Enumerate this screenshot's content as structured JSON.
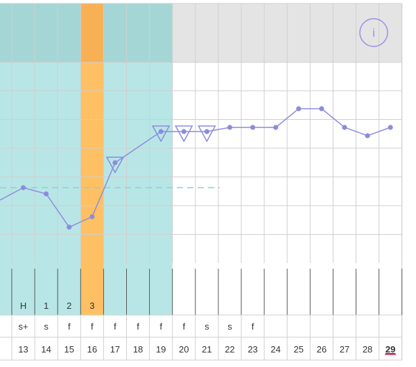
{
  "colors": {
    "teal_band": "#b8e6e6",
    "teal_header": "#a5d6d6",
    "orange_day": "#ffc063",
    "orange_header": "#f7b054",
    "gray_header": "#e4e4e4",
    "grid": "#cfcfcf",
    "series": "#8c8cdc",
    "coverline": "#7fd6d6",
    "today": "#e0406e",
    "info": "#9a8fe6"
  },
  "info_button": {
    "glyph": "i"
  },
  "period_row": [
    "H",
    "1",
    "2",
    "3",
    "",
    "",
    "",
    "",
    "",
    "",
    "",
    "",
    "",
    "",
    "",
    "",
    ""
  ],
  "mucus_row": [
    "s+",
    "s",
    "f",
    "f",
    "f",
    "f",
    "f",
    "f",
    "s",
    "s",
    "f",
    "",
    "",
    "",
    "",
    "",
    ""
  ],
  "date_row": [
    "13",
    "14",
    "15",
    "16",
    "17",
    "18",
    "19",
    "20",
    "21",
    "22",
    "23",
    "24",
    "25",
    "26",
    "27",
    "28",
    "29"
  ],
  "today_index": 16,
  "chart_data": {
    "type": "line",
    "x": [
      13,
      14,
      15,
      16,
      17,
      18,
      19,
      20,
      21,
      22,
      23,
      24,
      25,
      26,
      27,
      28,
      29
    ],
    "y_level": [
      5.3,
      5.0,
      3.4,
      3.9,
      6.5,
      null,
      8.0,
      8.0,
      8.0,
      8.2,
      8.2,
      8.2,
      9.1,
      9.1,
      8.2,
      7.8,
      8.2
    ],
    "highlighted_days": [
      17,
      19,
      20,
      21
    ],
    "teal_range": [
      13,
      19
    ],
    "orange_day": 16,
    "coverline_level": 5.3,
    "coverline_range": [
      13,
      21
    ]
  }
}
